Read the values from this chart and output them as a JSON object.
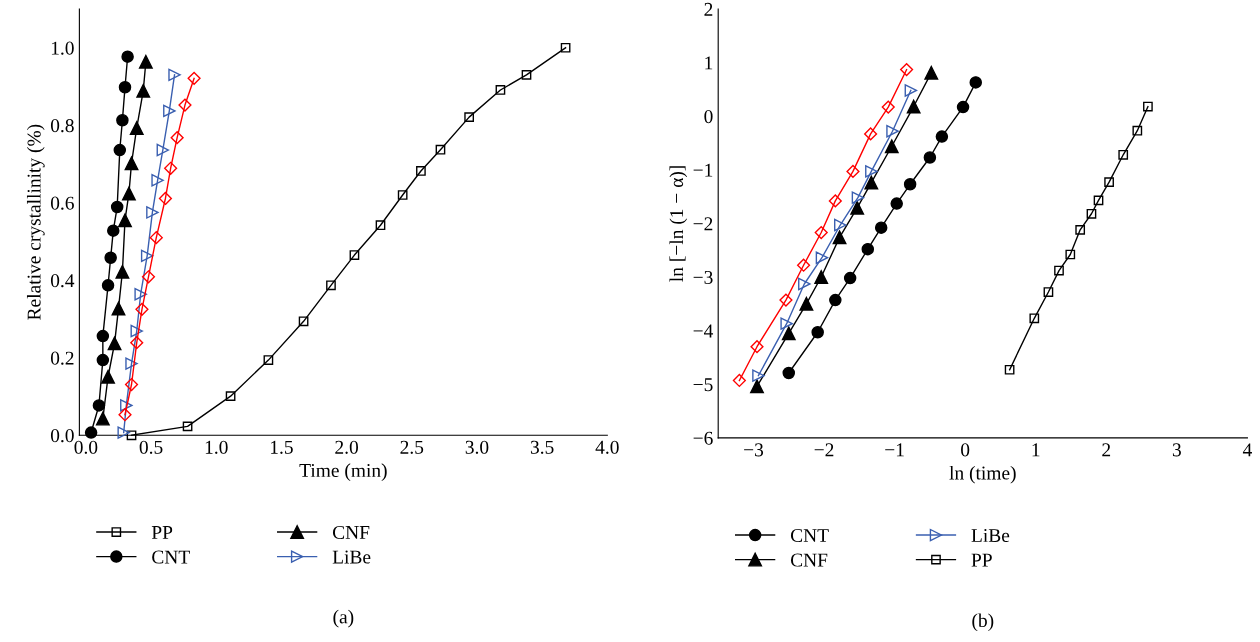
{
  "chart_data": [
    {
      "type": "line",
      "xlabel": "Time (min)",
      "ylabel": "Relative crystallinity (%)",
      "annotations": [
        "(a)"
      ],
      "xlim": [
        -0.05,
        4.0
      ],
      "ylim": [
        0,
        1.1
      ],
      "xticks": [
        {
          "value": 0,
          "label": "0.0"
        },
        {
          "value": 0.5,
          "label": "0.5"
        },
        {
          "value": 1,
          "label": "1.0"
        },
        {
          "value": 1.5,
          "label": "1.5"
        },
        {
          "value": 2,
          "label": "2.0"
        },
        {
          "value": 2.5,
          "label": "2.5"
        },
        {
          "value": 3,
          "label": "3.0"
        },
        {
          "value": 3.5,
          "label": "3.5"
        },
        {
          "value": 4,
          "label": "4.0"
        }
      ],
      "yticks": [
        {
          "value": 0,
          "label": "0.0"
        },
        {
          "value": 0.2,
          "label": "0.2"
        },
        {
          "value": 0.4,
          "label": "0.4"
        },
        {
          "value": 0.6,
          "label": "0.6"
        },
        {
          "value": 0.8,
          "label": "0.8"
        },
        {
          "value": 1,
          "label": "1.0"
        }
      ],
      "grid": false,
      "legend": "bottom",
      "line_style": "solid",
      "series": [
        {
          "name": "PP",
          "color": "#000000",
          "marker": "square",
          "x": [
            0.35,
            0.78,
            1.11,
            1.4,
            1.67,
            1.88,
            2.06,
            2.26,
            2.43,
            2.57,
            2.72,
            2.94,
            3.18,
            3.38,
            3.68
          ],
          "values": [
            0.0,
            0.023,
            0.101,
            0.194,
            0.294,
            0.387,
            0.465,
            0.542,
            0.62,
            0.682,
            0.737,
            0.821,
            0.891,
            0.93,
            1.0
          ]
        },
        {
          "name": "CNT",
          "color": "#000000",
          "marker": "circle",
          "x": [
            0.04,
            0.1,
            0.13,
            0.13,
            0.17,
            0.19,
            0.21,
            0.24,
            0.26,
            0.28,
            0.3,
            0.32
          ],
          "values": [
            0.007,
            0.077,
            0.194,
            0.256,
            0.387,
            0.458,
            0.528,
            0.589,
            0.736,
            0.813,
            0.898,
            0.977
          ]
        },
        {
          "name": "CNF",
          "color": "#000000",
          "marker": "triangle",
          "x": [
            0.13,
            0.17,
            0.22,
            0.25,
            0.28,
            0.3,
            0.33,
            0.35,
            0.39,
            0.44,
            0.46
          ],
          "values": [
            0.043,
            0.151,
            0.237,
            0.327,
            0.422,
            0.555,
            0.624,
            0.702,
            0.793,
            0.889,
            0.964
          ]
        },
        {
          "name": "LiBe",
          "color": "#3a5fb0",
          "marker": "triangle-right",
          "x": [
            0.29,
            0.31,
            0.35,
            0.39,
            0.42,
            0.47,
            0.51,
            0.55,
            0.59,
            0.64,
            0.68
          ],
          "values": [
            0.007,
            0.077,
            0.185,
            0.269,
            0.364,
            0.463,
            0.575,
            0.658,
            0.736,
            0.837,
            0.93
          ]
        },
        {
          "color": "#ff0000",
          "marker": "diamond",
          "x": [
            0.3,
            0.35,
            0.39,
            0.43,
            0.48,
            0.54,
            0.61,
            0.65,
            0.7,
            0.76,
            0.83
          ],
          "values": [
            0.053,
            0.131,
            0.239,
            0.325,
            0.409,
            0.51,
            0.611,
            0.689,
            0.768,
            0.852,
            0.921
          ]
        }
      ]
    },
    {
      "type": "line",
      "xlabel": "ln (time)",
      "ylabel": "ln [−ln (1 − α)]",
      "annotations": [
        "(b)"
      ],
      "xlim": [
        -3.5,
        4.0
      ],
      "ylim": [
        -6,
        2
      ],
      "xticks": [
        {
          "value": -3,
          "label": "−3"
        },
        {
          "value": -2,
          "label": "−2"
        },
        {
          "value": -1,
          "label": "−1"
        },
        0,
        1,
        2,
        3,
        4
      ],
      "yticks": [
        {
          "value": -6,
          "label": "−6"
        },
        {
          "value": -5,
          "label": "−5"
        },
        {
          "value": -4,
          "label": "−4"
        },
        {
          "value": -3,
          "label": "−3"
        },
        {
          "value": -2,
          "label": "−2"
        },
        {
          "value": -1,
          "label": "−1"
        },
        0,
        1,
        2
      ],
      "grid": false,
      "legend": "bottom",
      "line_style": "solid",
      "series": [
        {
          "name": "CNT",
          "color": "#000000",
          "marker": "circle",
          "x": [
            -2.5,
            -2.09,
            -1.84,
            -1.63,
            -1.38,
            -1.19,
            -0.97,
            -0.78,
            -0.5,
            -0.33,
            -0.03,
            0.15
          ],
          "values": [
            -4.79,
            -4.03,
            -3.43,
            -3.02,
            -2.48,
            -2.08,
            -1.63,
            -1.27,
            -0.77,
            -0.38,
            0.17,
            0.63
          ]
        },
        {
          "name": "CNF",
          "color": "#000000",
          "marker": "triangle",
          "x": [
            -2.95,
            -2.5,
            -2.25,
            -2.04,
            -1.78,
            -1.53,
            -1.33,
            -1.04,
            -0.73,
            -0.48
          ],
          "values": [
            -5.04,
            -4.05,
            -3.5,
            -3.0,
            -2.26,
            -1.71,
            -1.24,
            -0.56,
            0.18,
            0.81
          ]
        },
        {
          "name": "LiBe",
          "color": "#3a5fb0",
          "marker": "triangle-right",
          "x": [
            -2.93,
            -2.53,
            -2.28,
            -2.03,
            -1.77,
            -1.52,
            -1.33,
            -1.03,
            -0.77
          ],
          "values": [
            -4.84,
            -3.87,
            -3.13,
            -2.64,
            -2.03,
            -1.52,
            -1.03,
            -0.28,
            0.48
          ]
        },
        {
          "color": "#ff0000",
          "marker": "diamond",
          "x": [
            -3.2,
            -2.95,
            -2.54,
            -2.29,
            -2.04,
            -1.84,
            -1.59,
            -1.34,
            -1.09,
            -0.83
          ],
          "values": [
            -4.93,
            -4.3,
            -3.43,
            -2.78,
            -2.17,
            -1.58,
            -1.03,
            -0.33,
            0.17,
            0.87
          ]
        },
        {
          "name": "PP",
          "color": "#000000",
          "marker": "square",
          "x": [
            0.63,
            0.98,
            1.18,
            1.33,
            1.49,
            1.63,
            1.79,
            1.89,
            2.04,
            2.24,
            2.44,
            2.59
          ],
          "values": [
            -4.73,
            -3.77,
            -3.28,
            -2.88,
            -2.58,
            -2.12,
            -1.82,
            -1.57,
            -1.23,
            -0.72,
            -0.27,
            0.18
          ]
        }
      ]
    }
  ]
}
